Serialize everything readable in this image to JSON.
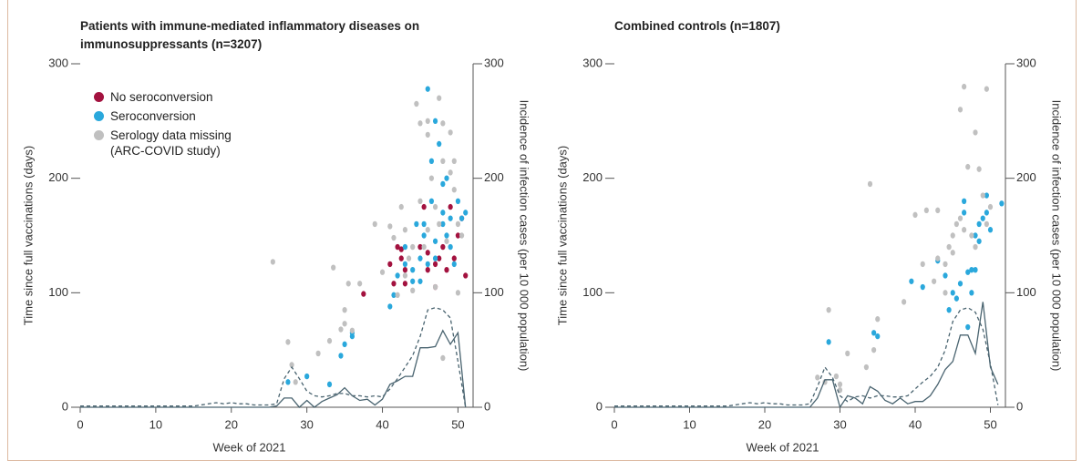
{
  "chart_data": [
    {
      "type": "scatter",
      "title": "Patients with immune-mediated inflammatory diseases on immunosuppressants (n=3207)",
      "xlabel": "Week of 2021",
      "ylabel": "Time since full vaccinations (days)",
      "y2label": "Incidence of infection cases (per 10 000 population)",
      "xlim": [
        0,
        52
      ],
      "xticks": [
        0,
        10,
        20,
        30,
        40,
        50
      ],
      "ylim": [
        0,
        300
      ],
      "yticks": [
        0,
        100,
        200,
        300
      ],
      "y2lim": [
        0,
        300
      ],
      "y2ticks": [
        0,
        100,
        200,
        300
      ],
      "legend": "upper left",
      "series": [
        {
          "name": "No seroconversion",
          "color": "#a3123f",
          "x": [
            37.5,
            41,
            41.5,
            42,
            42.5,
            42.5,
            43,
            43,
            45,
            46,
            46,
            47,
            47.5,
            48,
            48.5,
            49,
            49.5,
            50,
            50.5,
            51,
            47,
            45.5
          ],
          "values": [
            99,
            125,
            108,
            140,
            130,
            138,
            120,
            108,
            140,
            120,
            135,
            125,
            130,
            140,
            120,
            175,
            130,
            150,
            165,
            115,
            105,
            175
          ]
        },
        {
          "name": "Seroconversion",
          "color": "#2aa8dc",
          "x": [
            27.5,
            30,
            33,
            34.5,
            35,
            36,
            36,
            41,
            41.5,
            42,
            43,
            43,
            44,
            44,
            44.5,
            45,
            45.5,
            45.5,
            46,
            46.5,
            46.5,
            47,
            47,
            47.5,
            48,
            48,
            48.5,
            48.5,
            49,
            49,
            49.5,
            50,
            50.5,
            51,
            45,
            46,
            47,
            48
          ],
          "values": [
            22,
            27,
            20,
            45,
            55,
            62,
            65,
            88,
            98,
            115,
            125,
            140,
            110,
            120,
            160,
            130,
            150,
            160,
            278,
            215,
            180,
            250,
            145,
            230,
            195,
            170,
            150,
            200,
            165,
            140,
            125,
            180,
            165,
            170,
            110,
            125,
            130,
            160
          ]
        },
        {
          "name": "Serology data missing (ARC-COVID study)",
          "color": "#c0c0c0",
          "x": [
            25.5,
            27.5,
            28,
            28.5,
            31.5,
            33,
            33.5,
            34.5,
            35,
            35,
            35.5,
            36,
            37,
            39,
            40,
            41,
            41.5,
            42,
            42.5,
            43,
            43.5,
            44,
            44.5,
            45,
            45,
            45.5,
            46,
            46,
            46.5,
            47,
            47.5,
            47.5,
            48,
            48,
            48,
            48.5,
            49,
            49,
            49.5,
            49.5,
            50,
            50.5,
            50,
            44,
            43,
            46,
            47
          ],
          "values": [
            127,
            57,
            37,
            22,
            47,
            58,
            122,
            68,
            73,
            85,
            108,
            67,
            108,
            160,
            118,
            158,
            148,
            98,
            175,
            155,
            130,
            102,
            265,
            180,
            248,
            140,
            238,
            250,
            200,
            175,
            270,
            160,
            248,
            215,
            43,
            145,
            240,
            205,
            215,
            190,
            160,
            150,
            100,
            140,
            115,
            155,
            105
          ]
        },
        {
          "axis": "y2",
          "color": "#4a6470",
          "dash": false,
          "x": [
            0,
            1,
            2,
            3,
            4,
            5,
            6,
            7,
            8,
            9,
            10,
            11,
            12,
            13,
            14,
            15,
            16,
            17,
            18,
            19,
            20,
            21,
            22,
            23,
            24,
            25,
            26,
            27,
            28,
            29,
            30,
            31,
            32,
            33,
            34,
            35,
            36,
            37,
            38,
            39,
            40,
            41,
            42,
            43,
            44,
            45,
            46,
            47,
            48,
            49,
            50,
            51
          ],
          "values": [
            0,
            0,
            0,
            0,
            0,
            0,
            0,
            0,
            0,
            0,
            0,
            0,
            0,
            0,
            0,
            0,
            0,
            0,
            0,
            0,
            0,
            0,
            0,
            0,
            0,
            0,
            1,
            8,
            8,
            0,
            6,
            0,
            5,
            8,
            11,
            17,
            10,
            6,
            7,
            2,
            7,
            20,
            23,
            27,
            27,
            52,
            52,
            53,
            67,
            55,
            65,
            0
          ]
        },
        {
          "axis": "y2",
          "color": "#4a6470",
          "dash": true,
          "x": [
            0,
            1,
            2,
            3,
            4,
            5,
            6,
            7,
            8,
            9,
            10,
            11,
            12,
            13,
            14,
            15,
            16,
            17,
            18,
            19,
            20,
            21,
            22,
            23,
            24,
            25,
            26,
            27,
            28,
            29,
            30,
            31,
            32,
            33,
            34,
            35,
            36,
            37,
            38,
            39,
            40,
            41,
            42,
            43,
            44,
            45,
            46,
            47,
            48,
            49,
            50,
            51
          ],
          "values": [
            1,
            1,
            1,
            1,
            1,
            1,
            1,
            1,
            1,
            1,
            1,
            1,
            1,
            1,
            1,
            1,
            2,
            3,
            4,
            3,
            4,
            3,
            3,
            2,
            2,
            2,
            3,
            25,
            35,
            25,
            14,
            10,
            9,
            10,
            12,
            12,
            10,
            10,
            9,
            10,
            9,
            16,
            25,
            35,
            45,
            62,
            85,
            87,
            85,
            78,
            40,
            0
          ]
        }
      ]
    },
    {
      "type": "scatter",
      "title": "Combined controls (n=1807)",
      "xlabel": "Week of 2021",
      "ylabel": "Time since full vaccinations (days)",
      "y2label": "Incidence of infection cases (per 10 000 population)",
      "xlim": [
        0,
        52
      ],
      "xticks": [
        0,
        10,
        20,
        30,
        40,
        50
      ],
      "ylim": [
        0,
        300
      ],
      "yticks": [
        0,
        100,
        200,
        300
      ],
      "y2lim": [
        0,
        300
      ],
      "y2ticks": [
        0,
        100,
        200,
        300
      ],
      "series": [
        {
          "color": "#2aa8dc",
          "x": [
            28.5,
            34.5,
            35,
            39.5,
            41,
            43,
            44,
            44.5,
            45,
            45.5,
            46,
            46.5,
            46.5,
            47,
            47,
            47.5,
            48,
            48.5,
            48.5,
            49,
            49.5,
            49.5,
            50,
            51.5,
            47.5,
            48
          ],
          "values": [
            57,
            65,
            62,
            110,
            105,
            128,
            115,
            85,
            100,
            95,
            108,
            170,
            180,
            118,
            70,
            120,
            150,
            160,
            145,
            165,
            185,
            170,
            155,
            178,
            100,
            120
          ]
        },
        {
          "color": "#c0c0c0",
          "x": [
            27,
            28,
            28.5,
            29.5,
            30,
            30,
            31,
            33.5,
            34,
            34.5,
            35,
            38.5,
            40,
            41,
            41.5,
            42.5,
            43,
            43,
            44,
            44.5,
            45,
            45.5,
            46,
            46,
            46.5,
            46.5,
            47,
            47.5,
            48,
            48,
            48.5,
            49,
            49.5,
            49.5,
            50,
            44,
            45
          ],
          "values": [
            26,
            22,
            85,
            27,
            20,
            15,
            47,
            35,
            195,
            50,
            77,
            92,
            168,
            125,
            172,
            110,
            130,
            172,
            125,
            140,
            150,
            160,
            260,
            165,
            280,
            155,
            210,
            150,
            240,
            140,
            208,
            185,
            278,
            160,
            175,
            100,
            135
          ]
        },
        {
          "axis": "y2",
          "color": "#4a6470",
          "dash": false,
          "x": [
            0,
            1,
            2,
            3,
            4,
            5,
            6,
            7,
            8,
            9,
            10,
            11,
            12,
            13,
            14,
            15,
            16,
            17,
            18,
            19,
            20,
            21,
            22,
            23,
            24,
            25,
            26,
            27,
            28,
            29,
            30,
            31,
            32,
            33,
            34,
            35,
            36,
            37,
            38,
            39,
            40,
            41,
            42,
            43,
            44,
            45,
            46,
            47,
            48,
            49,
            50,
            51
          ],
          "values": [
            0,
            0,
            0,
            0,
            0,
            0,
            0,
            0,
            0,
            0,
            0,
            0,
            0,
            0,
            0,
            0,
            0,
            0,
            0,
            0,
            0,
            0,
            0,
            0,
            0,
            0,
            0,
            8,
            24,
            24,
            0,
            10,
            8,
            3,
            18,
            14,
            6,
            3,
            8,
            3,
            5,
            5,
            10,
            20,
            33,
            40,
            63,
            63,
            47,
            92,
            35,
            20
          ]
        },
        {
          "axis": "y2",
          "color": "#4a6470",
          "dash": true,
          "x": [
            0,
            1,
            2,
            3,
            4,
            5,
            6,
            7,
            8,
            9,
            10,
            11,
            12,
            13,
            14,
            15,
            16,
            17,
            18,
            19,
            20,
            21,
            22,
            23,
            24,
            25,
            26,
            27,
            28,
            29,
            30,
            31,
            32,
            33,
            34,
            35,
            36,
            37,
            38,
            39,
            40,
            41,
            42,
            43,
            44,
            45,
            46,
            47,
            48,
            49,
            50,
            51
          ],
          "values": [
            1,
            1,
            1,
            1,
            1,
            1,
            1,
            1,
            1,
            1,
            1,
            1,
            1,
            1,
            1,
            1,
            2,
            3,
            4,
            3,
            4,
            3,
            3,
            2,
            2,
            2,
            3,
            18,
            35,
            26,
            10,
            5,
            9,
            10,
            8,
            10,
            10,
            9,
            9,
            10,
            16,
            22,
            27,
            35,
            50,
            75,
            85,
            87,
            83,
            68,
            38,
            2
          ]
        }
      ]
    }
  ]
}
